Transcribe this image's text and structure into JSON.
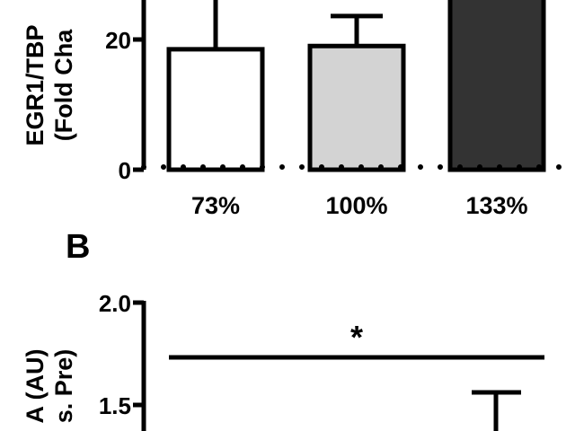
{
  "panel_a": {
    "ylabel_line1": "EGR1/TBP",
    "ylabel_line2": "(Fold Cha",
    "y_ticks": [
      "0",
      "20"
    ],
    "bars": [
      {
        "category": "73%",
        "value": 18.5,
        "error": 17,
        "color": "#ffffff"
      },
      {
        "category": "100%",
        "value": 19,
        "error": 4.6,
        "color": "#d3d3d3"
      },
      {
        "category": "133%",
        "value": 28,
        "error": 0,
        "color": "#333333"
      }
    ]
  },
  "panel_b": {
    "letter": "B",
    "ylabel_line1": "A (AU)",
    "ylabel_line2": "s. Pre)",
    "y_ticks": [
      "2.0",
      "1.5"
    ],
    "significance": "*",
    "visible_error_bar_top": 1.55
  },
  "chart_data": [
    {
      "type": "bar",
      "title": "",
      "xlabel": "",
      "ylabel": "EGR1/TBP (Fold Cha",
      "categories": [
        "73%",
        "100%",
        "133%"
      ],
      "values": [
        18.5,
        19,
        28
      ],
      "errors": [
        17,
        4.6,
        0
      ],
      "ylim": [
        0,
        27
      ],
      "y_ticks": [
        0,
        20
      ],
      "baseline": 1,
      "grid": false,
      "legend": "none"
    },
    {
      "type": "bar",
      "title": "",
      "panel": "B",
      "ylabel": "A (AU) s. Pre)",
      "categories": [],
      "values": [],
      "ylim": [
        1.25,
        2.0
      ],
      "y_ticks": [
        1.5,
        2.0
      ],
      "annotations": [
        {
          "text": "*",
          "y": 1.72
        }
      ],
      "grid": false,
      "legend": "none"
    }
  ]
}
